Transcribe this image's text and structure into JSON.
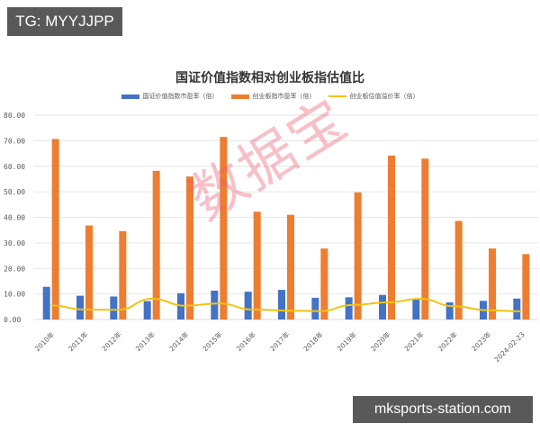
{
  "badges": {
    "top_left": "TG: MYYJJPP",
    "bottom_right": "mksports-station.com"
  },
  "watermark": "数据宝",
  "colors": {
    "blue": "#4472c4",
    "orange": "#ed7d31",
    "yellow": "#f2c314",
    "grid": "#e6e6e6",
    "axis_text": "#595959"
  },
  "chart_data": {
    "type": "bar",
    "title": "国证价值指数相对创业板指估值比",
    "xlabel": "",
    "ylabel": "",
    "ylim": [
      0,
      80
    ],
    "yticks": [
      "0.00",
      "10.00",
      "20.00",
      "30.00",
      "40.00",
      "50.00",
      "60.00",
      "70.00",
      "80.00"
    ],
    "grid": true,
    "legend_position": "top",
    "categories": [
      "2010年",
      "2011年",
      "2012年",
      "2013年",
      "2014年",
      "2015年",
      "2016年",
      "2017年",
      "2018年",
      "2019年",
      "2020年",
      "2021年",
      "2022年",
      "2023年",
      "2024-02-23"
    ],
    "series": [
      {
        "name": "国证价值指数市盈率（倍）",
        "type": "bar",
        "color": "#4472c4",
        "values": [
          12.8,
          9.3,
          9.0,
          7.2,
          10.3,
          11.3,
          10.9,
          11.6,
          8.5,
          8.7,
          9.6,
          7.8,
          6.7,
          7.3,
          8.2
        ]
      },
      {
        "name": "创业板指市盈率（倍）",
        "type": "bar",
        "color": "#ed7d31",
        "values": [
          70.7,
          36.8,
          34.6,
          58.2,
          56.0,
          71.5,
          42.2,
          41.0,
          27.8,
          49.8,
          64.2,
          63.0,
          38.6,
          27.8,
          25.6
        ]
      },
      {
        "name": "创业板估值溢价率（倍）",
        "type": "line",
        "color": "#f2c314",
        "values": [
          5.5,
          3.9,
          3.8,
          8.1,
          5.4,
          6.3,
          3.9,
          3.5,
          3.3,
          5.7,
          6.7,
          8.1,
          5.2,
          3.6,
          3.2
        ]
      }
    ]
  }
}
